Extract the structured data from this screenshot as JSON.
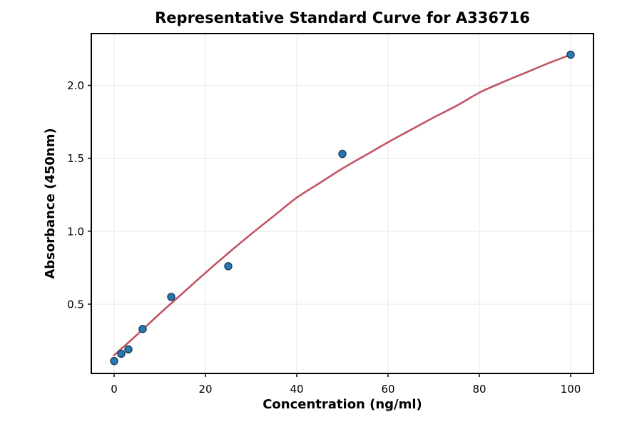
{
  "figure": {
    "background": "#ffffff"
  },
  "chart_data": {
    "type": "scatter",
    "title": "Representative Standard Curve for A336716",
    "xlabel": "Concentration (ng/ml)",
    "ylabel": "Absorbance (450nm)",
    "xlim": [
      -5,
      105
    ],
    "ylim": [
      0.025,
      2.355
    ],
    "x_ticks": [
      0,
      20,
      40,
      60,
      80,
      100
    ],
    "x_tick_labels": [
      "0",
      "20",
      "40",
      "60",
      "80",
      "100"
    ],
    "y_ticks": [
      0.5,
      1.0,
      1.5,
      2.0
    ],
    "y_tick_labels": [
      "0.5",
      "1.0",
      "1.5",
      "2.0"
    ],
    "grid": true,
    "legend_position": "none",
    "series": [
      {
        "name": "standard-points",
        "type": "scatter",
        "x": [
          0,
          1.5625,
          3.125,
          6.25,
          12.5,
          25,
          50,
          100
        ],
        "y": [
          0.11,
          0.16,
          0.19,
          0.33,
          0.55,
          0.76,
          1.53,
          2.21
        ]
      },
      {
        "name": "fitted-curve",
        "type": "line",
        "x": [
          0,
          5,
          10,
          15,
          20,
          25,
          30,
          35,
          40,
          45,
          50,
          55,
          60,
          65,
          70,
          75,
          80,
          85,
          90,
          95,
          100
        ],
        "y": [
          0.15,
          0.29,
          0.435,
          0.575,
          0.715,
          0.85,
          0.98,
          1.105,
          1.23,
          1.33,
          1.43,
          1.52,
          1.61,
          1.695,
          1.78,
          1.86,
          1.95,
          2.02,
          2.085,
          2.15,
          2.21
        ]
      }
    ],
    "colors": {
      "point_fill": "#2878b5",
      "point_edge": "#1b4460",
      "curve": "#c25563",
      "grid": "#e8e8e8",
      "axis": "#000000",
      "plot_background": "#ffffff"
    }
  }
}
